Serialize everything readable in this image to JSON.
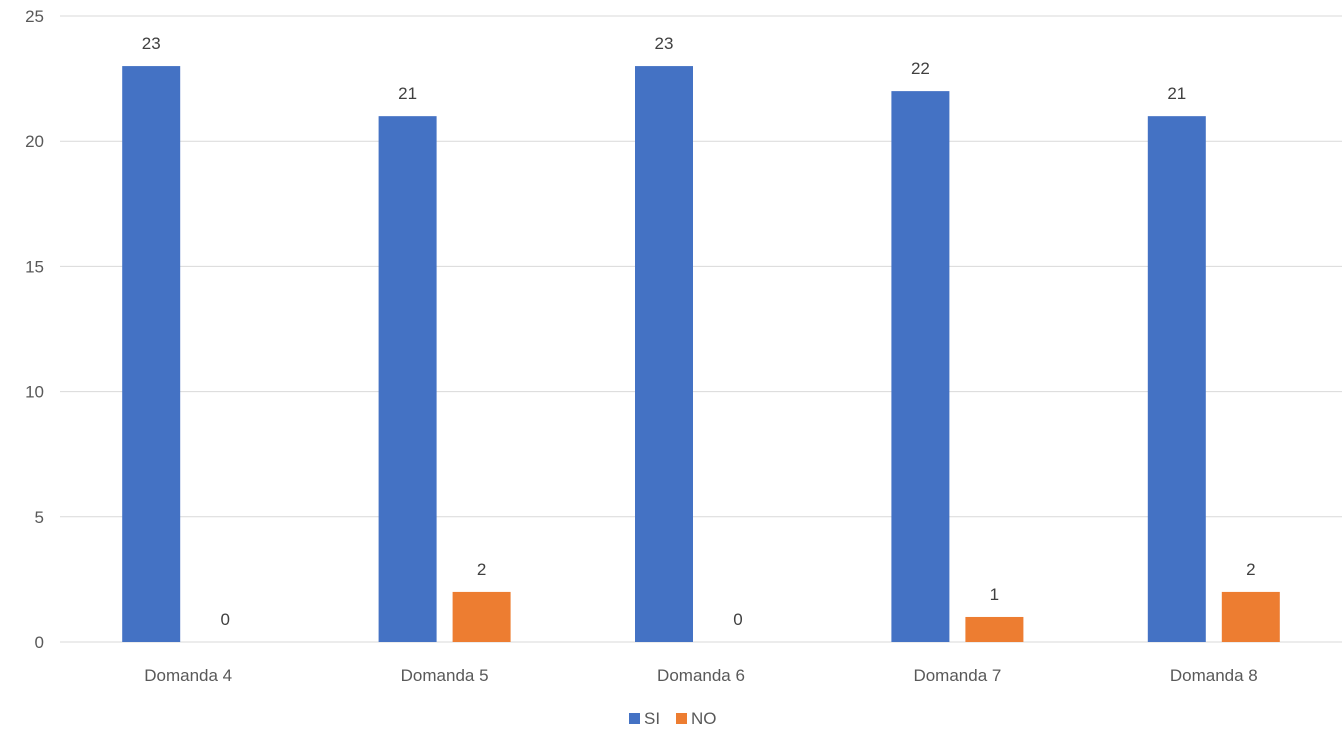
{
  "chart_data": {
    "type": "bar",
    "categories": [
      "Domanda 4",
      "Domanda 5",
      "Domanda 6",
      "Domanda 7",
      "Domanda 8"
    ],
    "series": [
      {
        "name": "SI",
        "values": [
          23,
          21,
          23,
          22,
          21
        ],
        "color": "#4472C4"
      },
      {
        "name": "NO",
        "values": [
          0,
          2,
          0,
          1,
          2
        ],
        "color": "#ED7D31"
      }
    ],
    "ylim": [
      0,
      25
    ],
    "yticks": [
      0,
      5,
      10,
      15,
      20,
      25
    ],
    "grid": true,
    "legend": "bottom-center",
    "data_labels": true
  }
}
